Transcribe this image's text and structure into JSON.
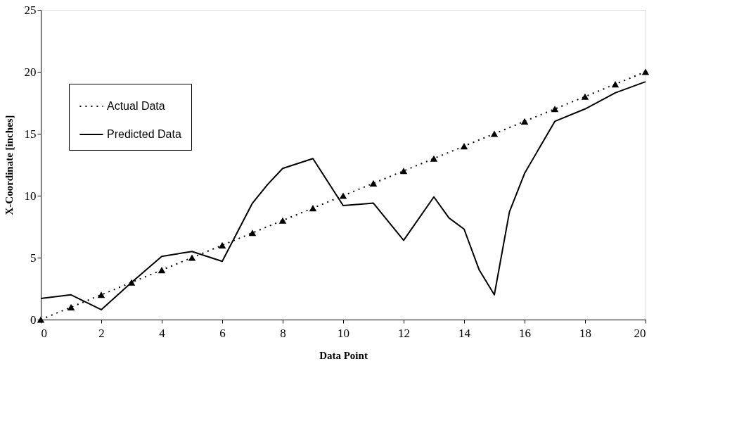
{
  "chart_data": {
    "type": "line",
    "xlabel": "Data Point",
    "ylabel": "X-Coordinate [inches]",
    "xlim": [
      0,
      20
    ],
    "xticks": [
      0,
      2,
      4,
      6,
      8,
      10,
      12,
      14,
      16,
      18,
      20
    ],
    "ylim": [
      0,
      25
    ],
    "yticks": [
      0,
      5,
      10,
      15,
      20,
      25
    ],
    "grid": false,
    "legend": "top left",
    "series": [
      {
        "name": "Actual Data",
        "color": "#000000",
        "marker": "triangle",
        "line_style": "dotted",
        "x": [
          0,
          1,
          2,
          3,
          4,
          5,
          6,
          7,
          8,
          9,
          10,
          11,
          12,
          13,
          14,
          15,
          16,
          17,
          18,
          19,
          20
        ],
        "values": [
          0,
          1,
          2,
          3,
          4,
          5,
          6,
          7,
          8,
          9,
          10,
          11,
          12,
          13,
          14,
          15,
          16,
          17,
          18,
          19,
          20
        ]
      },
      {
        "name": "Predicted Data",
        "color": "#000000",
        "marker": "none",
        "line_style": "solid",
        "x": [
          0,
          1,
          2,
          3,
          4,
          5,
          6,
          7,
          7.5,
          8,
          9,
          10,
          11,
          12,
          13,
          13.5,
          14,
          14.5,
          15,
          15.5,
          16,
          17,
          18,
          19,
          20
        ],
        "values": [
          1.7,
          2.0,
          0.8,
          3.0,
          5.1,
          5.5,
          4.7,
          9.4,
          10.9,
          12.2,
          13.0,
          9.2,
          9.4,
          6.4,
          9.9,
          8.2,
          7.3,
          4.0,
          2.0,
          8.7,
          11.8,
          16.0,
          17.0,
          18.3,
          19.2
        ]
      }
    ]
  }
}
